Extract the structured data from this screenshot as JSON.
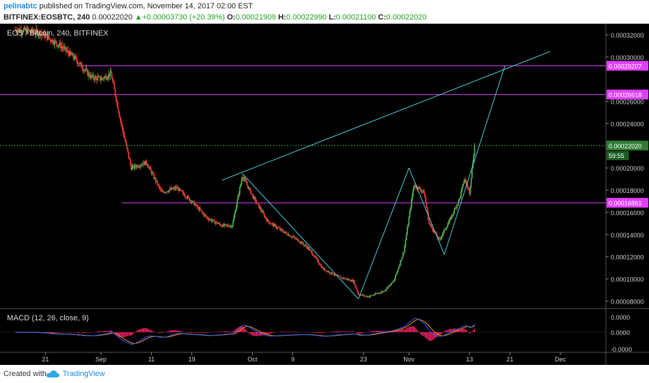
{
  "header": {
    "author": "pelinabtc",
    "published": "published on TradingView.com, November 14, 2017 02:00 EST",
    "symbol": "BITFINEX:EOSBTC, 240",
    "last": "0.00022020",
    "change": "+0.00003730 (+20.39%)",
    "o_label": "O:",
    "o": "0.00021909",
    "h_label": "H:",
    "h": "0.00022990",
    "l_label": "L:",
    "l": "0.00021100",
    "c_label": "C:",
    "c": "0.00022020"
  },
  "footer": {
    "created_with": "Created with",
    "brand": "TradingView"
  },
  "colors": {
    "background": "#000000",
    "up": "#4caf50",
    "down": "#e53935",
    "trendline": "#4dd0e1",
    "level": "#e040fb",
    "macd": "#2962ff",
    "signal": "#ff9800",
    "histogram": "#e91e63"
  },
  "chart_data": [
    {
      "type": "candlestick",
      "title": "EOS / Bitcoin, 240, BITFINEX",
      "x_tick_labels": [
        "21",
        "Sep",
        "11",
        "19",
        "Oct",
        "9",
        "23",
        "Nov",
        "13",
        "21",
        "Dec"
      ],
      "y_tick_labels": [
        "0.00032000",
        "0.00030000",
        "0.00026000",
        "0.00024000",
        "0.00020000",
        "0.00018000",
        "0.00016000",
        "0.00014000",
        "0.00012000",
        "0.00010000",
        "0.00008000"
      ],
      "ylim": [
        7.4e-05,
        0.00033
      ],
      "y_scale": "linear",
      "grid": false,
      "horizontal_levels": [
        0.00029207,
        0.00026618,
        0.00016861
      ],
      "level_labels": [
        "0.00029207",
        "0.00026618",
        "0.00016861"
      ],
      "last_price": 0.0002202,
      "last_price_label": "0.00022020",
      "countdown_label": "59:55",
      "close_path": [
        {
          "date": "2017-08-15",
          "close": 0.000325
        },
        {
          "date": "2017-08-20",
          "close": 0.000322
        },
        {
          "date": "2017-08-24",
          "close": 0.00031
        },
        {
          "date": "2017-08-27",
          "close": 0.000298
        },
        {
          "date": "2017-08-30",
          "close": 0.000282
        },
        {
          "date": "2017-09-01",
          "close": 0.00028
        },
        {
          "date": "2017-09-03",
          "close": 0.000285
        },
        {
          "date": "2017-09-05",
          "close": 0.00024
        },
        {
          "date": "2017-09-07",
          "close": 0.0002
        },
        {
          "date": "2017-09-10",
          "close": 0.000205
        },
        {
          "date": "2017-09-13",
          "close": 0.000178
        },
        {
          "date": "2017-09-16",
          "close": 0.000182
        },
        {
          "date": "2017-09-19",
          "close": 0.00017
        },
        {
          "date": "2017-09-22",
          "close": 0.000155
        },
        {
          "date": "2017-09-25",
          "close": 0.000148
        },
        {
          "date": "2017-09-27",
          "close": 0.000148
        },
        {
          "date": "2017-09-29",
          "close": 0.000193
        },
        {
          "date": "2017-10-01",
          "close": 0.000175
        },
        {
          "date": "2017-10-04",
          "close": 0.000152
        },
        {
          "date": "2017-10-07",
          "close": 0.000143
        },
        {
          "date": "2017-10-10",
          "close": 0.000135
        },
        {
          "date": "2017-10-12",
          "close": 0.000128
        },
        {
          "date": "2017-10-13",
          "close": 0.000122
        },
        {
          "date": "2017-10-15",
          "close": 0.000109
        },
        {
          "date": "2017-10-18",
          "close": 0.000102
        },
        {
          "date": "2017-10-21",
          "close": 9.8e-05
        },
        {
          "date": "2017-10-22",
          "close": 8.6e-05
        },
        {
          "date": "2017-10-24",
          "close": 8.4e-05
        },
        {
          "date": "2017-10-27",
          "close": 8.9e-05
        },
        {
          "date": "2017-10-29",
          "close": 9.8e-05
        },
        {
          "date": "2017-10-31",
          "close": 0.000125
        },
        {
          "date": "2017-11-02",
          "close": 0.000185
        },
        {
          "date": "2017-11-04",
          "close": 0.000178
        },
        {
          "date": "2017-11-05",
          "close": 0.00015
        },
        {
          "date": "2017-11-07",
          "close": 0.000135
        },
        {
          "date": "2017-11-09",
          "close": 0.000152
        },
        {
          "date": "2017-11-11",
          "close": 0.000172
        },
        {
          "date": "2017-11-12",
          "close": 0.00019
        },
        {
          "date": "2017-11-13",
          "close": 0.000178
        },
        {
          "date": "2017-11-14",
          "close": 0.0002202
        }
      ],
      "trendlines": [
        {
          "from": [
            "2017-09-25",
            0.000189
          ],
          "to": [
            "2017-11-29",
            0.000305
          ]
        },
        {
          "from": [
            "2017-09-29",
            0.000195
          ],
          "to": [
            "2017-10-22",
            8.2e-05
          ]
        },
        {
          "from": [
            "2017-10-22",
            8.2e-05
          ],
          "to": [
            "2017-11-01",
            0.0002
          ]
        },
        {
          "from": [
            "2017-11-01",
            0.0002
          ],
          "to": [
            "2017-11-08",
            0.000122
          ]
        },
        {
          "from": [
            "2017-11-08",
            0.000122
          ],
          "to": [
            "2017-11-20",
            0.000292
          ]
        }
      ]
    },
    {
      "type": "line",
      "title": "MACD (12, 26, close, 9)",
      "y_tick_labels": [
        "0.0000",
        "0.0000",
        "-0.0000"
      ],
      "series": [
        {
          "name": "MACD"
        },
        {
          "name": "Signal"
        },
        {
          "name": "Histogram"
        }
      ]
    }
  ]
}
